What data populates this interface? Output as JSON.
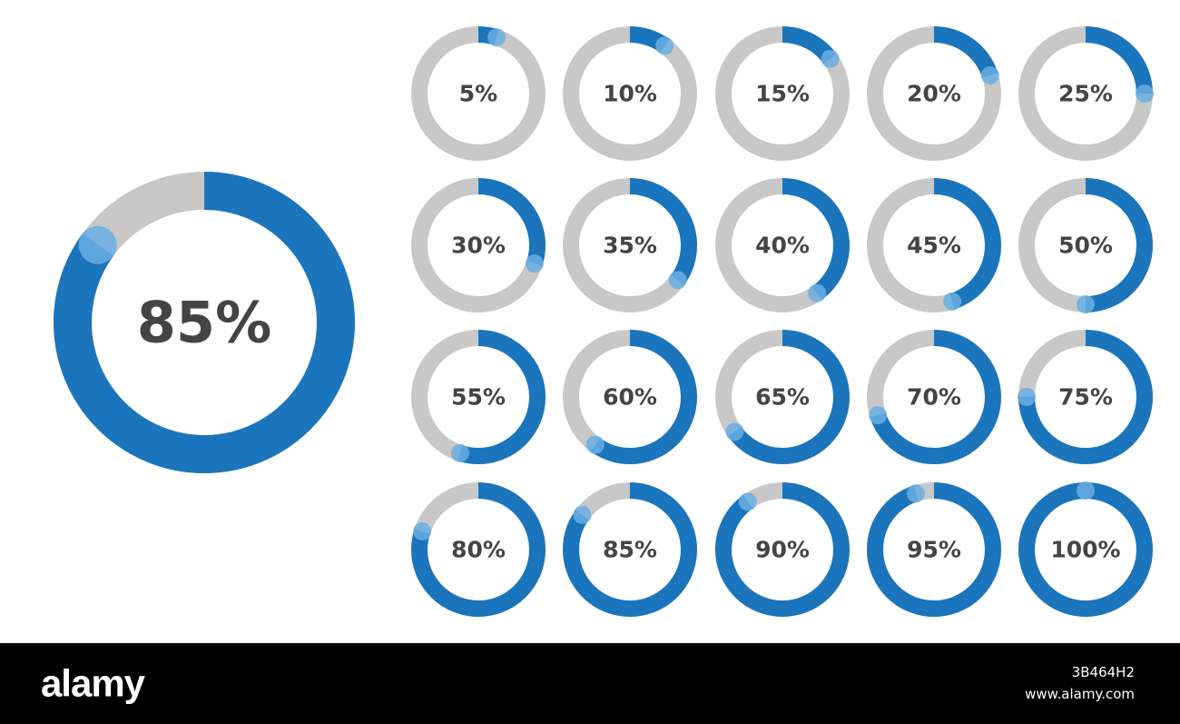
{
  "featured": {
    "value": 85,
    "label": "85%"
  },
  "rings": [
    {
      "value": 5,
      "label": "5%"
    },
    {
      "value": 10,
      "label": "10%"
    },
    {
      "value": 15,
      "label": "15%"
    },
    {
      "value": 20,
      "label": "20%"
    },
    {
      "value": 25,
      "label": "25%"
    },
    {
      "value": 30,
      "label": "30%"
    },
    {
      "value": 35,
      "label": "35%"
    },
    {
      "value": 40,
      "label": "40%"
    },
    {
      "value": 45,
      "label": "45%"
    },
    {
      "value": 50,
      "label": "50%"
    },
    {
      "value": 55,
      "label": "55%"
    },
    {
      "value": 60,
      "label": "60%"
    },
    {
      "value": 65,
      "label": "65%"
    },
    {
      "value": 70,
      "label": "70%"
    },
    {
      "value": 75,
      "label": "75%"
    },
    {
      "value": 80,
      "label": "80%"
    },
    {
      "value": 85,
      "label": "85%"
    },
    {
      "value": 90,
      "label": "90%"
    },
    {
      "value": 95,
      "label": "95%"
    },
    {
      "value": 100,
      "label": "100%"
    }
  ],
  "footer": {
    "brand": "alamy",
    "image_id": "3B464H2",
    "url": "www.alamy.com"
  }
}
